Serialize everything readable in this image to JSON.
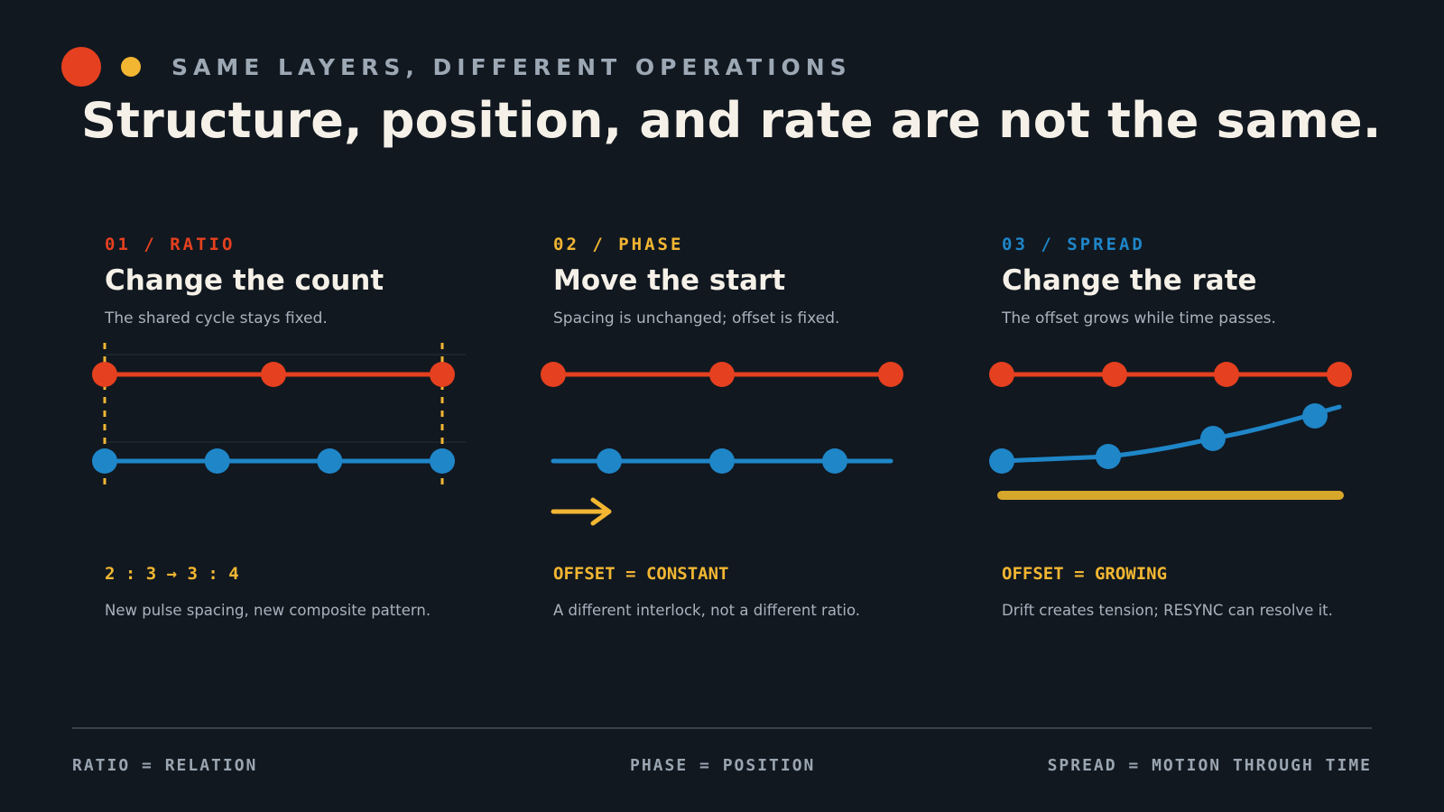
{
  "header": {
    "eyebrow": "SAME LAYERS, DIFFERENT OPERATIONS",
    "title": "Structure, position, and rate are not the same."
  },
  "panels": [
    {
      "kicker": "01 / RATIO",
      "title": "Change the count",
      "subtitle": "The shared cycle stays fixed.",
      "formula": "2 : 3 → 3 : 4",
      "note": "New pulse spacing, new composite pattern.",
      "accent": "#e5401f"
    },
    {
      "kicker": "02 / PHASE",
      "title": "Move the start",
      "subtitle": "Spacing is unchanged; offset is fixed.",
      "formula": "OFFSET = CONSTANT",
      "note": "A different interlock, not a different ratio.",
      "accent": "#f2b632"
    },
    {
      "kicker": "03 / SPREAD",
      "title": "Change the rate",
      "subtitle": "The offset grows while time passes.",
      "formula": "OFFSET = GROWING",
      "note": "Drift creates tension; RESYNC can resolve it.",
      "accent": "#1f86c8"
    }
  ],
  "footer": {
    "left": "RATIO = RELATION",
    "center": "PHASE = POSITION",
    "right": "SPREAD = MOTION THROUGH TIME"
  },
  "colors": {
    "background": "#111820",
    "red": "#e5401f",
    "yellow": "#f2b632",
    "blue": "#1f86c8",
    "muted_text": "#a9b2bd",
    "light_text": "#f6f1e8"
  }
}
